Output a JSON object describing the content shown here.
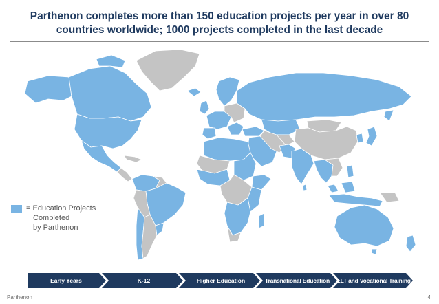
{
  "title": {
    "line1": "Parthenon completes more than 150 education projects per year in over 80",
    "line2": "countries worldwide; 1000 projects completed in the last decade"
  },
  "legend": {
    "equals": "=",
    "line1": "Education Projects",
    "line2": "Completed",
    "line3": "by Parthenon",
    "color": "#79b4e3"
  },
  "map": {
    "highlight_color": "#79b4e3",
    "other_color": "#c4c4c4"
  },
  "stages": [
    {
      "label": "Early Years"
    },
    {
      "label": "K-12"
    },
    {
      "label": "Higher Education"
    },
    {
      "label": "Transnational Education"
    },
    {
      "label": "ELT and Vocational Training"
    }
  ],
  "footer": {
    "brand": "Parthenon",
    "page": "4"
  }
}
